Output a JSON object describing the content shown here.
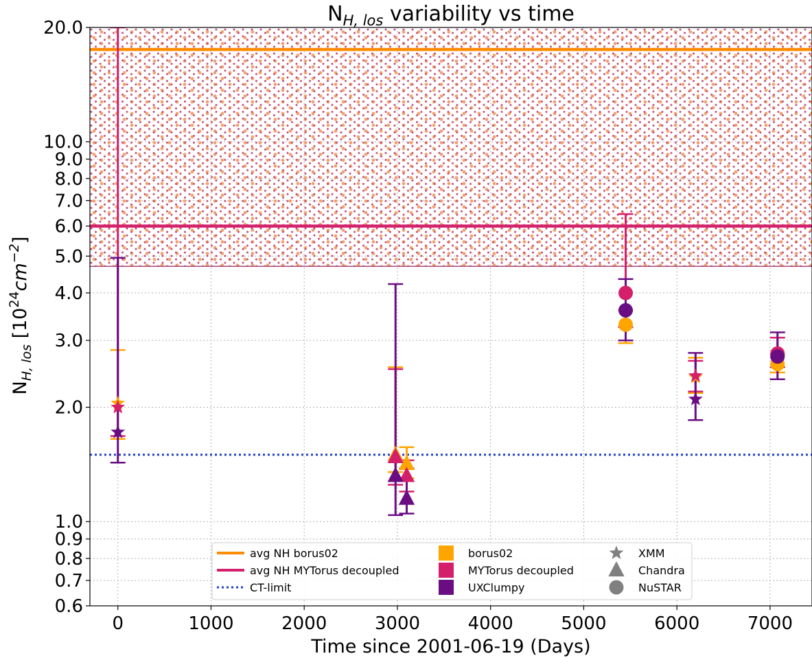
{
  "chart_data": {
    "type": "scatter",
    "title_main": "N",
    "title_sub": "H, los",
    "title_rest": " variability vs time",
    "xlabel": "Time since 2001-06-19 (Days)",
    "ylabel_main": "N",
    "ylabel_sub": "H, los",
    "ylabel_unit_pre": " [10",
    "ylabel_unit_exp": "24",
    "ylabel_unit_mid": "cm",
    "ylabel_unit_exp2": "−2",
    "ylabel_unit_post": "]",
    "yscale": "log",
    "xlim": [
      -300,
      7450
    ],
    "ylim": [
      0.6,
      20.0
    ],
    "grid": true,
    "x_ticks": [
      0,
      1000,
      2000,
      3000,
      4000,
      5000,
      6000,
      7000
    ],
    "x_tick_labels": [
      "0",
      "1000",
      "2000",
      "3000",
      "4000",
      "5000",
      "6000",
      "7000"
    ],
    "y_ticks": [
      0.6,
      0.7,
      0.8,
      0.9,
      1.0,
      2.0,
      3.0,
      4.0,
      5.0,
      6.0,
      7.0,
      8.0,
      9.0,
      10.0,
      20.0
    ],
    "y_tick_labels": [
      "0.6",
      "0.7",
      "0.8",
      "0.9",
      "1.0",
      "2.0",
      "3.0",
      "4.0",
      "5.0",
      "6.0",
      "7.0",
      "8.0",
      "9.0",
      "10.0",
      "20.0"
    ],
    "colors": {
      "borus02": "#ffa500",
      "mytorus": "#d41f6b",
      "uxclumpy": "#6a0d83",
      "ct_limit": "#2040c8",
      "avg_borus02": "#ff8c00",
      "avg_mytorus": "#d41f6b",
      "marker_legend": "#808080"
    },
    "reference_lines": [
      {
        "name": "avg NH borus02",
        "y": 17.5,
        "style": "solid",
        "color": "#ff8c00"
      },
      {
        "name": "avg NH MYTorus decoupled",
        "y": 6.0,
        "style": "solid",
        "color": "#d41f6b"
      },
      {
        "name": "CT-limit",
        "y": 1.5,
        "style": "dotted",
        "color": "#2040c8"
      }
    ],
    "shaded_region": {
      "y_from": 4.7,
      "y_to": 20.0,
      "pattern": "dotted"
    },
    "series": [
      {
        "name": "borus02",
        "marker_color": "#ffa500",
        "points": [
          {
            "x": 0,
            "y": 2.05,
            "yerr_low": 1.65,
            "yerr_high": 2.83,
            "marker": "star"
          },
          {
            "x": 2980,
            "y": 1.5,
            "yerr_low": 1.35,
            "yerr_high": 2.55,
            "marker": "triangle"
          },
          {
            "x": 3100,
            "y": 1.42,
            "yerr_low": 1.3,
            "yerr_high": 1.57,
            "marker": "triangle"
          },
          {
            "x": 5450,
            "y": 3.3,
            "yerr_low": 2.95,
            "yerr_high": 3.6,
            "marker": "circle"
          },
          {
            "x": 6200,
            "y": 2.4,
            "yerr_low": 2.18,
            "yerr_high": 2.7,
            "marker": "star"
          },
          {
            "x": 7080,
            "y": 2.6,
            "yerr_low": 2.47,
            "yerr_high": 2.75,
            "marker": "circle"
          }
        ]
      },
      {
        "name": "MYTorus decoupled",
        "marker_color": "#d41f6b",
        "points": [
          {
            "x": 0,
            "y": 2.0,
            "yerr_low": 1.68,
            "yerr_high": 20.0,
            "marker": "star"
          },
          {
            "x": 2980,
            "y": 1.48,
            "yerr_low": 1.25,
            "yerr_high": 2.52,
            "marker": "triangle"
          },
          {
            "x": 3100,
            "y": 1.32,
            "yerr_low": 1.2,
            "yerr_high": 1.45,
            "marker": "triangle"
          },
          {
            "x": 5450,
            "y": 4.0,
            "yerr_low": 3.25,
            "yerr_high": 6.45,
            "marker": "circle"
          },
          {
            "x": 6200,
            "y": 2.42,
            "yerr_low": 2.2,
            "yerr_high": 2.65,
            "marker": "star"
          },
          {
            "x": 7080,
            "y": 2.77,
            "yerr_low": 2.55,
            "yerr_high": 3.05,
            "marker": "circle"
          }
        ]
      },
      {
        "name": "UXClumpy",
        "marker_color": "#6a0d83",
        "points": [
          {
            "x": 0,
            "y": 1.72,
            "yerr_low": 1.43,
            "yerr_high": 4.95,
            "marker": "star"
          },
          {
            "x": 2980,
            "y": 1.32,
            "yerr_low": 1.04,
            "yerr_high": 4.22,
            "marker": "triangle"
          },
          {
            "x": 3100,
            "y": 1.15,
            "yerr_low": 1.05,
            "yerr_high": 1.38,
            "marker": "triangle"
          },
          {
            "x": 5450,
            "y": 3.6,
            "yerr_low": 3.0,
            "yerr_high": 4.35,
            "marker": "circle"
          },
          {
            "x": 6200,
            "y": 2.1,
            "yerr_low": 1.85,
            "yerr_high": 2.78,
            "marker": "star"
          },
          {
            "x": 7080,
            "y": 2.72,
            "yerr_low": 2.37,
            "yerr_high": 3.15,
            "marker": "circle"
          }
        ]
      }
    ],
    "legend": {
      "position": "lower center",
      "entries": [
        {
          "label": "avg NH borus02",
          "kind": "solid-line",
          "color": "#ff8c00"
        },
        {
          "label": "avg NH MYTorus decoupled",
          "kind": "solid-line",
          "color": "#d41f6b"
        },
        {
          "label": "CT-limit",
          "kind": "dotted-line",
          "color": "#2040c8"
        },
        {
          "label": "borus02",
          "kind": "square",
          "color": "#ffa500"
        },
        {
          "label": "MYTorus decoupled",
          "kind": "square",
          "color": "#d41f6b"
        },
        {
          "label": "UXClumpy",
          "kind": "square",
          "color": "#6a0d83"
        },
        {
          "label": "XMM",
          "kind": "star",
          "color": "#808080"
        },
        {
          "label": "Chandra",
          "kind": "triangle",
          "color": "#808080"
        },
        {
          "label": "NuSTAR",
          "kind": "circle",
          "color": "#808080"
        }
      ]
    }
  }
}
